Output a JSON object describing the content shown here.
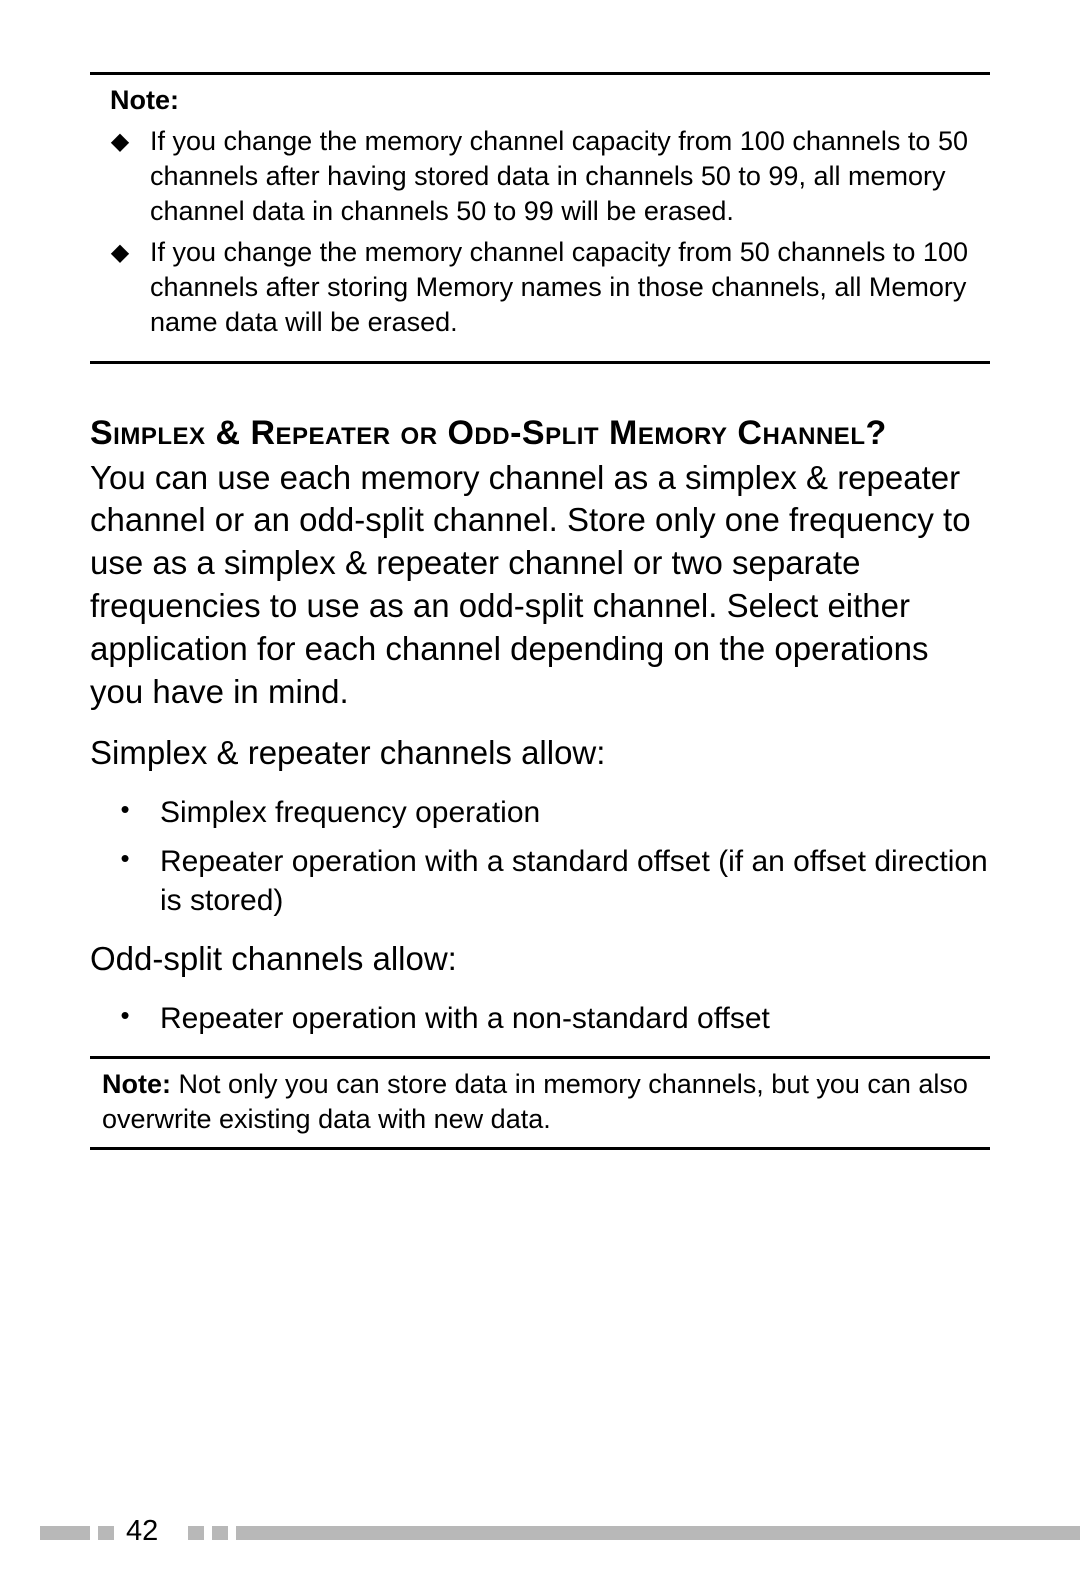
{
  "note_box_1": {
    "label": "Note:",
    "items": [
      "If you change the memory channel capacity from 100 channels to 50 channels after having stored data in channels 50 to 99, all memory channel data in channels 50 to 99 will be erased.",
      "If you change the memory channel capacity from 50 channels to 100 channels after storing Memory names in those channels, all Memory name data will be erased."
    ]
  },
  "section": {
    "heading": "Simplex & Repeater or Odd-Split Memory Channel?",
    "para1": "You can use each memory channel as a simplex & repeater channel or an odd-split channel.  Store only one frequency to use as a simplex & repeater channel or two separate frequencies to use as an odd-split channel.  Select either application for each channel depending on the operations you have in mind.",
    "para2": "Simplex & repeater channels allow:",
    "list1": [
      "Simplex frequency operation",
      "Repeater operation with a standard offset (if an offset direction is stored)"
    ],
    "para3": "Odd-split channels allow:",
    "list2": [
      "Repeater operation with a non-standard offset"
    ]
  },
  "note_box_2": {
    "label": "Note:",
    "text": "  Not only you can store data in memory channels, but you can also overwrite existing data with new data."
  },
  "footer": {
    "page_number": "42",
    "bar_color": "#b8b8b8"
  }
}
